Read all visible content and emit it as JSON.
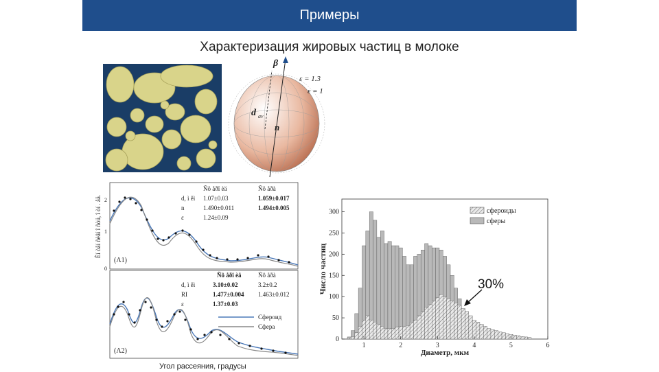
{
  "slide": {
    "title": "Примеры",
    "subtitle": "Характеризация жировых частиц в молоке",
    "caption": "Угол рассеяния, градусы",
    "percent_label": "30%",
    "colors": {
      "header": "#1f4e8c",
      "sphere_warm": "#c07658",
      "fit_line": "#4a78b8"
    }
  },
  "sphere_diagram": {
    "beta": "β",
    "eps1": "ε = 1.3",
    "eps2": "ε = 1",
    "dav": "d",
    "dav_sub": "av",
    "n": "n"
  },
  "fit_panels": {
    "y_axis_label": "Èí òåí ñèâí î ñòü, î òí . åä.",
    "y_ticks": [
      "2",
      "1",
      "0"
    ],
    "panel1": {
      "label": "(Λ1)",
      "col1": "Ñô åðî èä",
      "col2": "Ñô åðà",
      "rows": [
        {
          "name": "d, ì êì",
          "v1": "1.07±0.03",
          "v2": "1.059±0.017"
        },
        {
          "name": "n",
          "v1": "1.490±0.011",
          "v2": "1.494±0.005"
        },
        {
          "name": "ε",
          "v1": "1.24±0.09",
          "v2": ""
        }
      ]
    },
    "panel2": {
      "label": "(Λ2)",
      "col1": "Ñô åðî èä",
      "col2": "Ñô åðà",
      "rows": [
        {
          "name": "d, ì êì",
          "v1": "3.10±0.02",
          "v2": "3.2±0.2"
        },
        {
          "name": "RI",
          "v1": "1.477±0.004",
          "v2": "1.463±0.012"
        },
        {
          "name": "ε",
          "v1": "1.37±0.03",
          "v2": ""
        }
      ],
      "legend": [
        "Сфероид",
        "Сфера"
      ]
    }
  },
  "chart_data": {
    "type": "bar",
    "xlabel": "Диаметр, мкм",
    "ylabel": "Число частиц",
    "xlim": [
      0.4,
      6
    ],
    "ylim": [
      0,
      330
    ],
    "x_ticks": [
      1,
      2,
      3,
      4,
      5,
      6
    ],
    "y_ticks": [
      0,
      50,
      100,
      150,
      200,
      250,
      300
    ],
    "legend_position": "top-right",
    "bin_width": 0.1,
    "series": [
      {
        "name": "сферы",
        "x": [
          0.6,
          0.7,
          0.8,
          0.9,
          1.0,
          1.1,
          1.2,
          1.3,
          1.4,
          1.5,
          1.6,
          1.7,
          1.8,
          1.9,
          2.0,
          2.1,
          2.2,
          2.3,
          2.4,
          2.5,
          2.6,
          2.7,
          2.8,
          2.9,
          3.0,
          3.1,
          3.2,
          3.3,
          3.4,
          3.5,
          3.6,
          3.7,
          3.8,
          3.9
        ],
        "values": [
          5,
          20,
          60,
          120,
          220,
          255,
          300,
          280,
          240,
          255,
          225,
          230,
          220,
          220,
          215,
          195,
          175,
          175,
          195,
          200,
          210,
          225,
          220,
          215,
          215,
          210,
          195,
          175,
          150,
          120,
          95,
          70,
          55,
          45
        ]
      },
      {
        "name": "сфероиды",
        "x": [
          0.6,
          0.7,
          0.8,
          0.9,
          1.0,
          1.1,
          1.2,
          1.3,
          1.4,
          1.5,
          1.6,
          1.7,
          1.8,
          1.9,
          2.0,
          2.1,
          2.2,
          2.3,
          2.4,
          2.5,
          2.6,
          2.7,
          2.8,
          2.9,
          3.0,
          3.1,
          3.2,
          3.3,
          3.4,
          3.5,
          3.6,
          3.7,
          3.8,
          3.9,
          4.0,
          4.1,
          4.2,
          4.3,
          4.4,
          4.5,
          4.6,
          4.7,
          4.8,
          4.9,
          5.0,
          5.1,
          5.2,
          5.3,
          5.4,
          5.5
        ],
        "values": [
          2,
          5,
          15,
          30,
          45,
          55,
          45,
          40,
          35,
          30,
          25,
          25,
          25,
          28,
          30,
          30,
          32,
          40,
          45,
          55,
          65,
          75,
          82,
          90,
          98,
          105,
          100,
          95,
          90,
          85,
          80,
          72,
          65,
          55,
          45,
          40,
          35,
          30,
          25,
          22,
          20,
          17,
          15,
          13,
          11,
          9,
          8,
          6,
          5,
          4
        ]
      }
    ]
  }
}
